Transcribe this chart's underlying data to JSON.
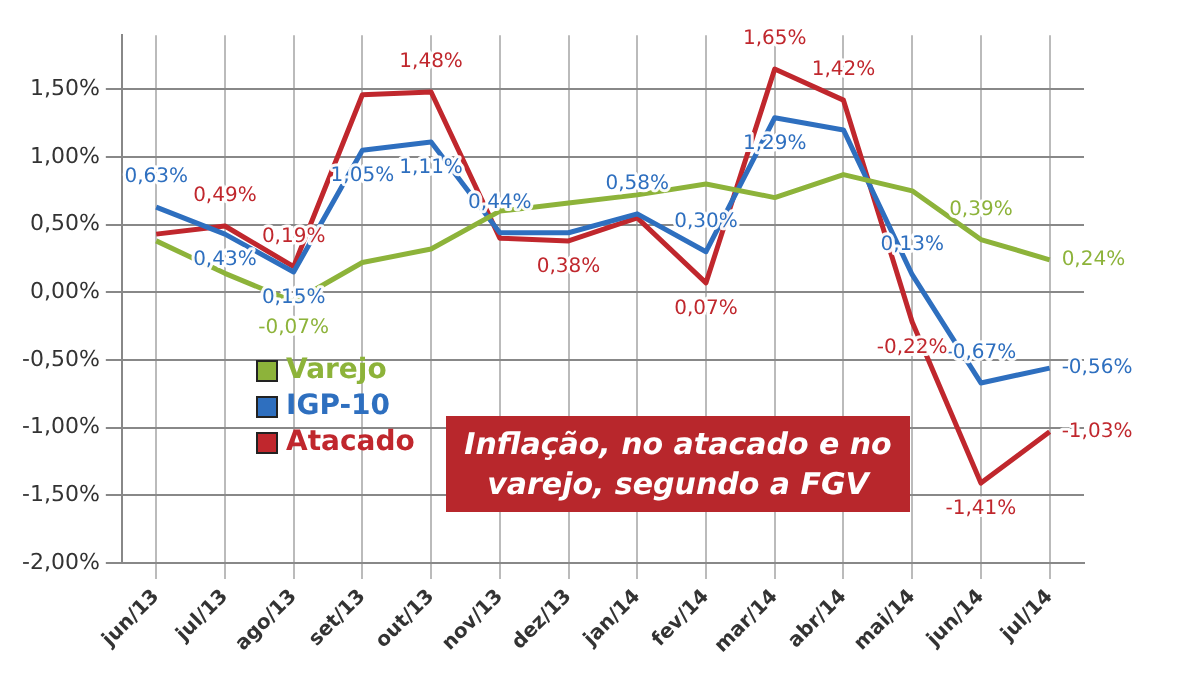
{
  "chart_data": {
    "type": "line",
    "title": "Inflação, no atacado e no varejo, segundo a FGV",
    "categories": [
      "jun/13",
      "jul/13",
      "ago/13",
      "set/13",
      "out/13",
      "nov/13",
      "dez/13",
      "jan/14",
      "fev/14",
      "mar/14",
      "abr/14",
      "mai/14",
      "jun/14",
      "jul/14"
    ],
    "series": [
      {
        "name": "Varejo",
        "color": "#8db33a",
        "values": [
          0.38,
          0.14,
          -0.07,
          0.22,
          0.32,
          0.6,
          0.66,
          0.72,
          0.8,
          0.7,
          0.87,
          0.75,
          0.39,
          0.24
        ],
        "value_labels": [
          null,
          null,
          "-0,07%",
          null,
          null,
          null,
          null,
          null,
          null,
          null,
          null,
          null,
          "0,39%",
          "0,24%"
        ]
      },
      {
        "name": "IGP-10",
        "color": "#2e6fbf",
        "values": [
          0.63,
          0.43,
          0.15,
          1.05,
          1.11,
          0.44,
          0.44,
          0.58,
          0.3,
          1.29,
          1.2,
          0.13,
          -0.67,
          -0.56
        ],
        "value_labels": [
          "0,63%",
          "0,43%",
          "0,15%",
          "1,05%",
          "1,11%",
          "0,44%",
          null,
          "0,58%",
          "0,30%",
          "1,29%",
          null,
          "0,13%",
          "-0,67%",
          "-0,56%"
        ]
      },
      {
        "name": "Atacado",
        "color": "#c0272d",
        "values": [
          0.43,
          0.49,
          0.19,
          1.46,
          1.48,
          0.4,
          0.38,
          0.55,
          0.07,
          1.65,
          1.42,
          -0.22,
          -1.41,
          -1.03
        ],
        "value_labels": [
          null,
          "0,49%",
          "0,19%",
          null,
          "1,48%",
          null,
          "0,38%",
          null,
          "0,07%",
          "1,65%",
          "1,42%",
          "-0,22%",
          "-1,41%",
          "-1,03%"
        ]
      }
    ],
    "ylim": [
      -2,
      1.9
    ],
    "yticks": [
      {
        "value": -2,
        "label": "-2,00%"
      },
      {
        "value": -1.5,
        "label": "-1,50%"
      },
      {
        "value": -1,
        "label": "-1,00%"
      },
      {
        "value": -0.5,
        "label": "-0,50%"
      },
      {
        "value": 0,
        "label": "0,00%"
      },
      {
        "value": 0.5,
        "label": "0,50%"
      },
      {
        "value": 1,
        "label": "1,00%"
      },
      {
        "value": 1.5,
        "label": "1,50%"
      }
    ],
    "grid": true,
    "legend": "bottom left",
    "marker": "none",
    "line_style": "solid"
  }
}
